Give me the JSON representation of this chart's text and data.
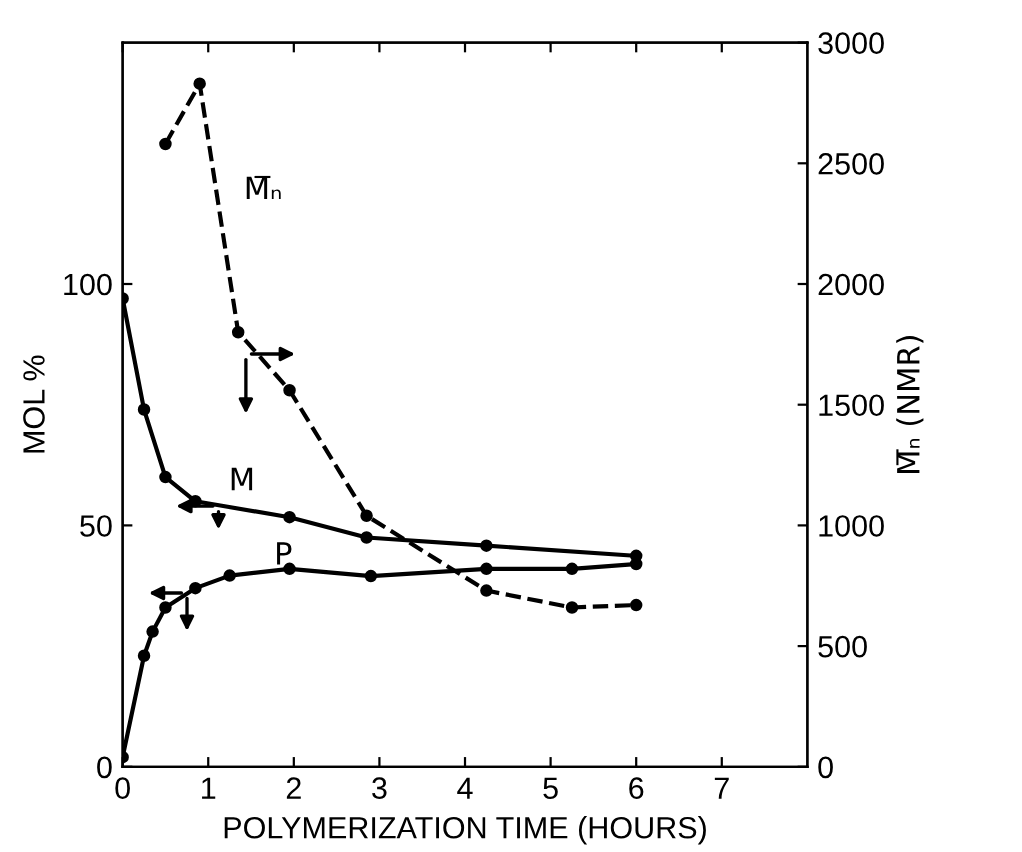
{
  "chart_data": {
    "type": "line",
    "xlabel": "POLYMERIZATION TIME (HOURS)",
    "ylabel": "MOL %",
    "y2label": "M̅ₙ (NMR)",
    "xlim": [
      0,
      8
    ],
    "xticks": [
      0,
      1,
      2,
      3,
      4,
      5,
      6,
      7
    ],
    "ylim": [
      0,
      150
    ],
    "yticks": [
      0,
      50,
      100
    ],
    "y2lim": [
      0,
      3000
    ],
    "y2ticks": [
      0,
      500,
      1000,
      1500,
      2000,
      2500,
      3000
    ],
    "grid": false,
    "legend": false,
    "marker": "circle",
    "series": [
      {
        "name": "M",
        "color": "#000000",
        "line_style": "solid",
        "x": [
          0,
          0.25,
          0.5,
          0.85,
          1.95,
          2.85,
          4.25,
          6
        ],
        "values": [
          97,
          74,
          60,
          55,
          51.7,
          47.5,
          45.8,
          43.7
        ]
      },
      {
        "name": "P",
        "color": "#000000",
        "line_style": "solid",
        "x": [
          0,
          0.25,
          0.35,
          0.5,
          0.85,
          1.25,
          1.95,
          2.9,
          4.25,
          5.25,
          6
        ],
        "values": [
          2,
          23,
          28,
          33,
          37,
          39.6,
          41,
          39.5,
          41,
          41,
          42
        ]
      },
      {
        "name": "M̅ₙ",
        "color": "#000000",
        "line_style": "dashed",
        "axis": "y2",
        "x": [
          0.5,
          0.9,
          1.35,
          1.95,
          2.85,
          4.25,
          5.25,
          6
        ],
        "values": [
          2580,
          2830,
          1800,
          1560,
          1040,
          730,
          660,
          670
        ]
      }
    ]
  }
}
